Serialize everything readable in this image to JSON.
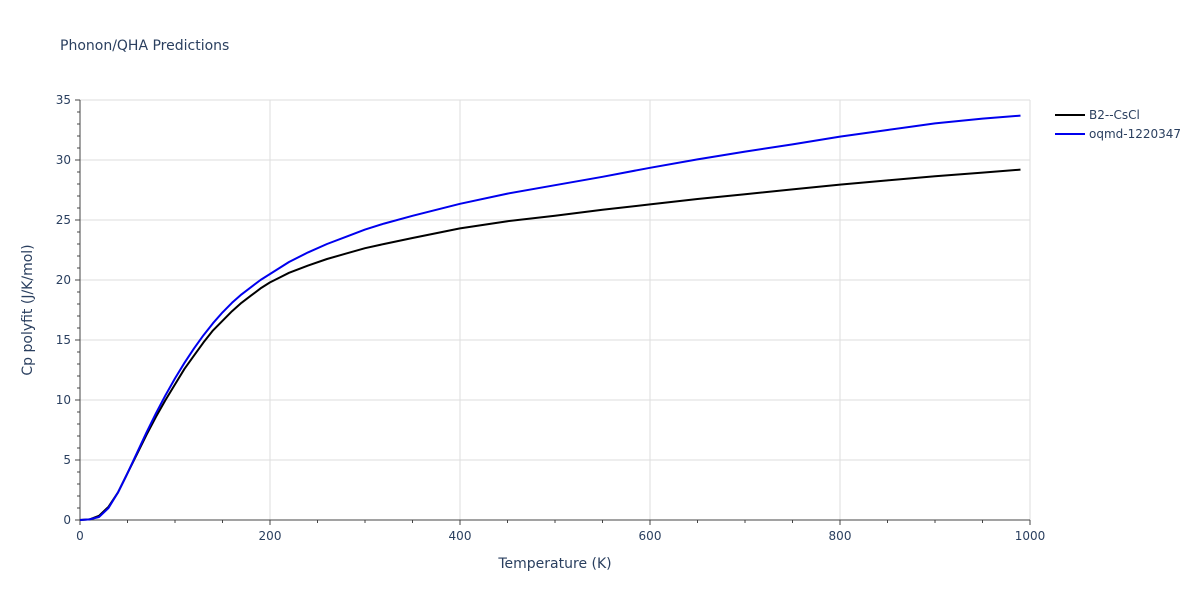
{
  "chart_data": {
    "type": "line",
    "title": "Phonon/QHA Predictions",
    "xlabel": "Temperature (K)",
    "ylabel": "Cp polyfit (J/K/mol)",
    "xlim": [
      0,
      1000
    ],
    "ylim": [
      0,
      35
    ],
    "xticks": [
      0,
      200,
      400,
      600,
      800,
      1000
    ],
    "yticks": [
      0,
      5,
      10,
      15,
      20,
      25,
      30,
      35
    ],
    "grid": true,
    "legend_position": "top-right",
    "series": [
      {
        "name": "B2--CsCl",
        "color": "#000000",
        "x": [
          0,
          10,
          20,
          30,
          40,
          50,
          60,
          70,
          80,
          90,
          100,
          110,
          120,
          130,
          140,
          150,
          160,
          170,
          180,
          190,
          200,
          210,
          220,
          240,
          260,
          280,
          300,
          320,
          350,
          400,
          450,
          500,
          550,
          600,
          650,
          700,
          750,
          800,
          850,
          900,
          950,
          990
        ],
        "y": [
          0,
          0.05,
          0.35,
          1.1,
          2.3,
          3.9,
          5.5,
          7.1,
          8.6,
          10.0,
          11.3,
          12.6,
          13.7,
          14.8,
          15.8,
          16.6,
          17.4,
          18.1,
          18.7,
          19.3,
          19.8,
          20.2,
          20.6,
          21.2,
          21.75,
          22.2,
          22.65,
          23.0,
          23.5,
          24.3,
          24.9,
          25.35,
          25.85,
          26.3,
          26.75,
          27.15,
          27.55,
          27.95,
          28.3,
          28.65,
          28.95,
          29.2
        ]
      },
      {
        "name": "oqmd-1220347",
        "color": "#0000ee",
        "x": [
          0,
          10,
          20,
          30,
          40,
          50,
          60,
          70,
          80,
          90,
          100,
          110,
          120,
          130,
          140,
          150,
          160,
          170,
          180,
          190,
          200,
          210,
          220,
          240,
          260,
          280,
          300,
          320,
          350,
          400,
          450,
          500,
          550,
          600,
          650,
          700,
          750,
          800,
          850,
          900,
          950,
          990
        ],
        "y": [
          0,
          0.05,
          0.25,
          1.0,
          2.3,
          3.9,
          5.6,
          7.3,
          8.9,
          10.4,
          11.8,
          13.1,
          14.3,
          15.4,
          16.4,
          17.3,
          18.1,
          18.8,
          19.4,
          20.0,
          20.5,
          21.0,
          21.5,
          22.3,
          23.0,
          23.6,
          24.2,
          24.7,
          25.35,
          26.35,
          27.2,
          27.9,
          28.6,
          29.35,
          30.05,
          30.7,
          31.3,
          31.95,
          32.5,
          33.05,
          33.45,
          33.7
        ]
      }
    ]
  }
}
